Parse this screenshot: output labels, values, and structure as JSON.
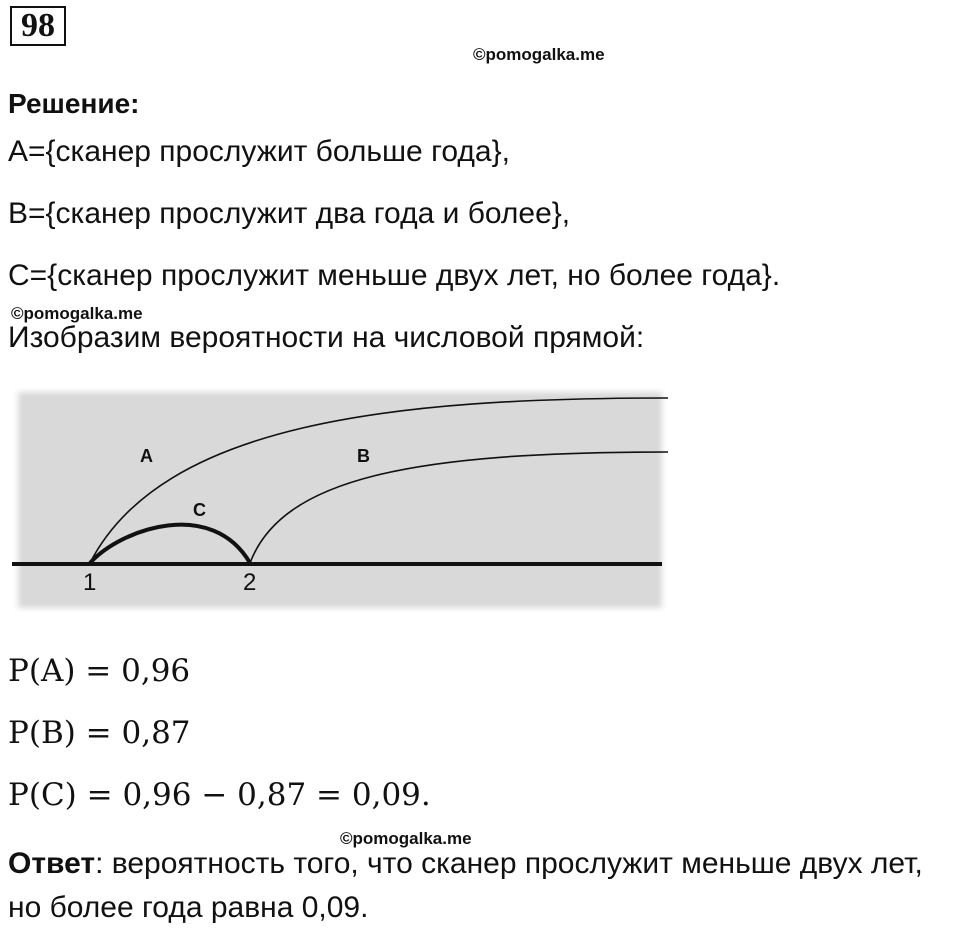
{
  "problem_number": "98",
  "watermark": "©pomogalka.me",
  "heading": "Решение:",
  "lines": [
    "A={сканер прослужит больше года},",
    "B={сканер прослужит два года и более},",
    "C={сканер прослужит меньше двух лет, но более года}.",
    "Изобразим вероятности на числовой прямой:"
  ],
  "diagram": {
    "arc_labels": [
      "A",
      "B",
      "C"
    ],
    "axis_ticks": [
      "1",
      "2"
    ],
    "background_color": "#d9d9d9"
  },
  "formulas": [
    "P(A) = 0,96",
    "P(B) = 0,87",
    "P(C) = 0,96 − 0,87 = 0,09."
  ],
  "answer": {
    "label": "Ответ",
    "text": ": вероятность того, что сканер прослужит меньше двух лет, но более года равна 0,09."
  }
}
